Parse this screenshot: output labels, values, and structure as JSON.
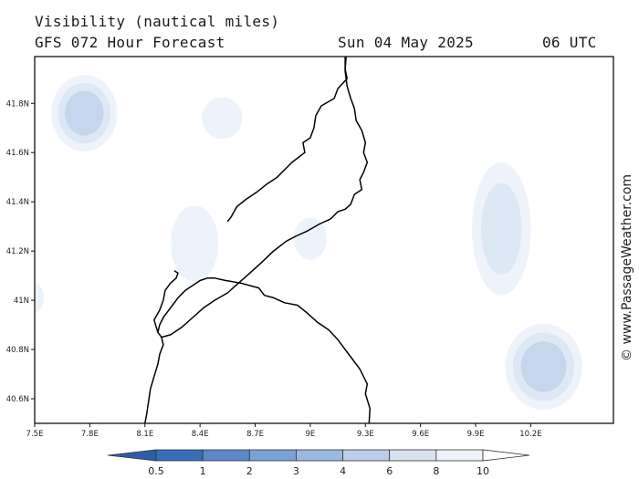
{
  "header": {
    "title": "Visibility (nautical miles)",
    "subtitle": "GFS 072 Hour Forecast",
    "date": "Sun 04 May 2025",
    "time": "06 UTC"
  },
  "credit": "© www.PassageWeather.com",
  "map": {
    "lon_range": [
      7.5,
      10.65
    ],
    "lat_range": [
      40.5,
      41.99
    ],
    "x_ticks": [
      {
        "v": 7.5,
        "label": "7.5E"
      },
      {
        "v": 7.8,
        "label": "7.8E"
      },
      {
        "v": 8.1,
        "label": "8.1E"
      },
      {
        "v": 8.4,
        "label": "8.4E"
      },
      {
        "v": 8.7,
        "label": "8.7E"
      },
      {
        "v": 9.0,
        "label": "9E"
      },
      {
        "v": 9.3,
        "label": "9.3E"
      },
      {
        "v": 9.6,
        "label": "9.6E"
      },
      {
        "v": 9.9,
        "label": "9.9E"
      },
      {
        "v": 10.2,
        "label": "10.2E"
      }
    ],
    "y_ticks": [
      {
        "v": 41.8,
        "label": "41.8N"
      },
      {
        "v": 41.6,
        "label": "41.6N"
      },
      {
        "v": 41.4,
        "label": "41.4N"
      },
      {
        "v": 41.2,
        "label": "41.2N"
      },
      {
        "v": 41.0,
        "label": "41N"
      },
      {
        "v": 40.8,
        "label": "40.8N"
      },
      {
        "v": 40.6,
        "label": "40.6N"
      }
    ],
    "colors": {
      "c10": "#eef3fb",
      "c8": "#dde8f5",
      "c6": "#c5d6ed",
      "c4": "#a8c0e2"
    },
    "fog_patches": [
      {
        "lon": 7.77,
        "lat": 41.76,
        "rlon": 0.18,
        "rlat": 0.155,
        "levels": [
          "c10",
          "c8",
          "c6"
        ]
      },
      {
        "lon": 8.52,
        "lat": 41.74,
        "rlon": 0.11,
        "rlat": 0.085,
        "levels": [
          "c10"
        ]
      },
      {
        "lon": 8.37,
        "lat": 41.23,
        "rlon": 0.13,
        "rlat": 0.155,
        "levels": [
          "c10"
        ]
      },
      {
        "lon": 9.0,
        "lat": 41.25,
        "rlon": 0.09,
        "rlat": 0.085,
        "levels": [
          "c10"
        ]
      },
      {
        "lon": 10.04,
        "lat": 41.29,
        "rlon": 0.16,
        "rlat": 0.27,
        "levels": [
          "c10",
          "c8"
        ]
      },
      {
        "lon": 10.27,
        "lat": 40.73,
        "rlon": 0.21,
        "rlat": 0.175,
        "levels": [
          "c10",
          "c8",
          "c6"
        ]
      },
      {
        "lon": 7.5,
        "lat": 41.01,
        "rlon": 0.05,
        "rlat": 0.06,
        "levels": [
          "c10"
        ]
      }
    ],
    "coast": [
      [
        [
          9.32,
          40.5
        ],
        [
          9.325,
          40.56
        ],
        [
          9.3,
          40.62
        ],
        [
          9.31,
          40.66
        ],
        [
          9.27,
          40.72
        ],
        [
          9.21,
          40.78
        ],
        [
          9.15,
          40.84
        ],
        [
          9.1,
          40.88
        ],
        [
          9.04,
          40.91
        ],
        [
          8.98,
          40.95
        ],
        [
          8.93,
          40.98
        ],
        [
          8.86,
          40.99
        ],
        [
          8.8,
          41.01
        ],
        [
          8.75,
          41.02
        ],
        [
          8.72,
          41.05
        ],
        [
          8.62,
          41.07
        ],
        [
          8.54,
          41.08
        ],
        [
          8.48,
          41.09
        ],
        [
          8.44,
          41.09
        ],
        [
          8.4,
          41.08
        ],
        [
          8.36,
          41.06
        ],
        [
          8.32,
          41.04
        ],
        [
          8.28,
          41.01
        ],
        [
          8.25,
          40.98
        ],
        [
          8.22,
          40.95
        ],
        [
          8.2,
          40.93
        ],
        [
          8.18,
          40.9
        ],
        [
          8.17,
          40.87
        ],
        [
          8.19,
          40.85
        ],
        [
          8.2,
          40.82
        ],
        [
          8.18,
          40.78
        ],
        [
          8.17,
          40.74
        ],
        [
          8.15,
          40.69
        ],
        [
          8.13,
          40.64
        ],
        [
          8.12,
          40.59
        ],
        [
          8.11,
          40.54
        ],
        [
          8.1,
          40.5
        ]
      ],
      [
        [
          8.17,
          40.87
        ],
        [
          8.15,
          40.92
        ],
        [
          8.18,
          40.96
        ],
        [
          8.2,
          41.0
        ],
        [
          8.21,
          41.04
        ],
        [
          8.24,
          41.07
        ],
        [
          8.27,
          41.09
        ],
        [
          8.28,
          41.11
        ],
        [
          8.26,
          41.12
        ]
      ],
      [
        [
          9.195,
          41.99
        ],
        [
          9.19,
          41.94
        ],
        [
          9.2,
          41.9
        ],
        [
          9.15,
          41.86
        ],
        [
          9.13,
          41.82
        ],
        [
          9.06,
          41.79
        ],
        [
          9.03,
          41.75
        ],
        [
          9.02,
          41.7
        ],
        [
          9.0,
          41.66
        ],
        [
          8.96,
          41.64
        ],
        [
          8.97,
          41.6
        ],
        [
          8.9,
          41.56
        ],
        [
          8.86,
          41.53
        ],
        [
          8.82,
          41.5
        ],
        [
          8.76,
          41.47
        ],
        [
          8.71,
          41.44
        ],
        [
          8.65,
          41.41
        ],
        [
          8.6,
          41.38
        ],
        [
          8.57,
          41.34
        ],
        [
          8.55,
          41.32
        ]
      ],
      [
        [
          9.19,
          41.99
        ],
        [
          9.19,
          41.93
        ],
        [
          9.2,
          41.87
        ],
        [
          9.22,
          41.82
        ],
        [
          9.24,
          41.78
        ],
        [
          9.25,
          41.73
        ],
        [
          9.28,
          41.69
        ],
        [
          9.3,
          41.64
        ],
        [
          9.29,
          41.6
        ],
        [
          9.31,
          41.56
        ],
        [
          9.29,
          41.52
        ],
        [
          9.27,
          41.49
        ],
        [
          9.28,
          41.45
        ],
        [
          9.24,
          41.43
        ],
        [
          9.22,
          41.39
        ],
        [
          9.19,
          41.37
        ],
        [
          9.15,
          41.36
        ],
        [
          9.11,
          41.33
        ],
        [
          9.05,
          41.31
        ],
        [
          8.98,
          41.28
        ],
        [
          8.92,
          41.26
        ],
        [
          8.87,
          41.24
        ],
        [
          8.8,
          41.2
        ],
        [
          8.73,
          41.15
        ],
        [
          8.67,
          41.11
        ],
        [
          8.61,
          41.07
        ],
        [
          8.55,
          41.03
        ],
        [
          8.48,
          41.0
        ],
        [
          8.42,
          40.97
        ],
        [
          8.36,
          40.93
        ],
        [
          8.3,
          40.89
        ],
        [
          8.24,
          40.86
        ],
        [
          8.19,
          40.85
        ]
      ]
    ]
  },
  "colorbar": {
    "labels": [
      "0.5",
      "1",
      "2",
      "3",
      "4",
      "6",
      "8",
      "10"
    ],
    "colors": [
      "#3a6db8",
      "#5b89c9",
      "#7ba2d6",
      "#9bb8e0",
      "#bbcde9",
      "#d8e3f2",
      "#f0f4fa"
    ]
  }
}
